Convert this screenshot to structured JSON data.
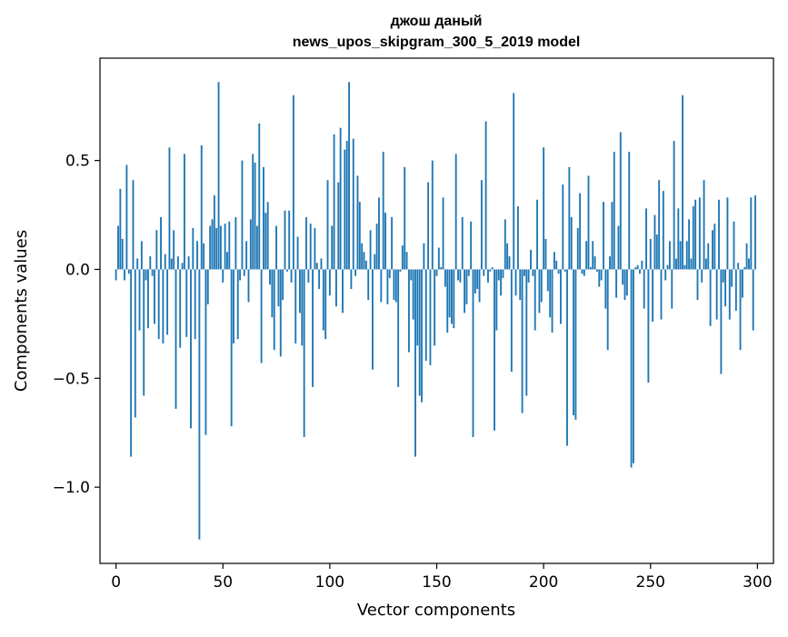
{
  "chart_data": {
    "type": "bar",
    "title": "джош даный",
    "subtitle": "news_upos_skipgram_300_5_2019 model",
    "xlabel": "Vector components",
    "ylabel": "Components values",
    "xlim": [
      -7.5,
      307.5
    ],
    "ylim": [
      -1.35,
      0.97
    ],
    "grid": false,
    "x_ticks": [
      0,
      50,
      100,
      150,
      200,
      250,
      300
    ],
    "x_tick_labels": [
      "0",
      "50",
      "100",
      "150",
      "200",
      "250",
      "300"
    ],
    "y_ticks": [
      0.5,
      0.0,
      -0.5,
      -1.0
    ],
    "y_tick_labels": [
      "0.5",
      "0.0",
      "−0.5",
      "−1.0"
    ],
    "bar_color": "#1f77b4",
    "values": [
      -0.05,
      0.2,
      0.37,
      0.14,
      -0.05,
      0.48,
      -0.02,
      -0.86,
      0.41,
      -0.68,
      0.05,
      -0.28,
      0.13,
      -0.58,
      -0.05,
      -0.27,
      0.06,
      -0.03,
      -0.25,
      0.18,
      -0.32,
      0.24,
      -0.34,
      0.07,
      -0.3,
      0.56,
      0.05,
      0.18,
      -0.64,
      0.06,
      -0.36,
      0.03,
      0.53,
      -0.31,
      0.06,
      -0.73,
      0.19,
      -0.32,
      0.13,
      -1.24,
      0.57,
      0.12,
      -0.76,
      -0.16,
      0.2,
      0.23,
      0.34,
      0.19,
      0.86,
      0.2,
      -0.06,
      0.21,
      0.08,
      0.22,
      -0.72,
      -0.34,
      0.24,
      -0.32,
      -0.05,
      0.5,
      -0.03,
      0.13,
      -0.15,
      0.23,
      0.53,
      0.49,
      0.2,
      0.67,
      -0.43,
      0.47,
      0.26,
      0.31,
      -0.07,
      -0.22,
      -0.37,
      0.2,
      -0.17,
      -0.4,
      -0.14,
      0.27,
      -0.01,
      0.27,
      -0.06,
      0.8,
      -0.34,
      0.15,
      -0.2,
      -0.35,
      -0.77,
      0.24,
      -0.06,
      0.21,
      -0.54,
      0.19,
      0.03,
      -0.09,
      0.05,
      -0.28,
      -0.32,
      0.41,
      -0.12,
      0.2,
      0.62,
      -0.17,
      0.4,
      0.65,
      -0.2,
      0.55,
      0.59,
      0.86,
      -0.09,
      0.6,
      -0.03,
      0.43,
      0.31,
      0.12,
      0.08,
      0.04,
      -0.14,
      0.18,
      -0.46,
      0.07,
      0.21,
      0.33,
      -0.15,
      0.54,
      0.26,
      -0.16,
      -0.04,
      0.24,
      -0.14,
      -0.15,
      -0.54,
      -0.01,
      0.11,
      0.47,
      0.08,
      -0.38,
      -0.05,
      -0.23,
      -0.86,
      -0.35,
      -0.58,
      -0.61,
      0.12,
      -0.42,
      0.4,
      -0.44,
      0.5,
      -0.35,
      -0.03,
      0.1,
      0.01,
      0.33,
      -0.08,
      -0.29,
      -0.22,
      -0.25,
      -0.27,
      0.53,
      -0.05,
      -0.06,
      0.24,
      -0.2,
      -0.16,
      -0.03,
      0.22,
      -0.77,
      -0.11,
      -0.09,
      -0.15,
      0.41,
      -0.03,
      0.68,
      -0.06,
      -0.01,
      0.01,
      -0.74,
      -0.28,
      -0.05,
      -0.12,
      -0.04,
      0.23,
      0.12,
      0.06,
      -0.47,
      0.81,
      -0.12,
      0.29,
      -0.14,
      -0.66,
      -0.03,
      -0.58,
      -0.06,
      0.09,
      -0.03,
      -0.28,
      0.32,
      -0.2,
      -0.15,
      0.56,
      0.14,
      -0.1,
      -0.22,
      -0.29,
      0.08,
      0.04,
      -0.02,
      -0.25,
      0.39,
      -0.01,
      -0.81,
      0.47,
      0.24,
      -0.67,
      -0.69,
      0.19,
      0.35,
      -0.02,
      -0.03,
      0.13,
      0.43,
      0.01,
      0.13,
      0.06,
      -0.01,
      -0.08,
      -0.05,
      0.31,
      -0.18,
      -0.37,
      0.06,
      0.31,
      0.54,
      -0.13,
      0.2,
      0.63,
      -0.07,
      -0.14,
      -0.12,
      0.54,
      -0.91,
      -0.89,
      0.01,
      0.02,
      -0.02,
      0.04,
      -0.18,
      0.28,
      -0.52,
      0.14,
      -0.24,
      0.25,
      0.16,
      0.41,
      -0.23,
      0.36,
      -0.05,
      0.02,
      0.13,
      -0.18,
      0.59,
      0.05,
      0.28,
      0.13,
      0.8,
      0.02,
      0.13,
      0.23,
      0.05,
      0.29,
      0.32,
      -0.14,
      0.33,
      -0.06,
      0.41,
      0.05,
      0.12,
      -0.26,
      0.18,
      0.21,
      -0.23,
      0.32,
      -0.48,
      -0.06,
      -0.17,
      0.33,
      -0.23,
      -0.08,
      0.22,
      -0.19,
      0.03,
      -0.37,
      -0.13,
      0.01,
      0.12,
      0.05,
      0.33,
      -0.28,
      0.34
    ]
  }
}
